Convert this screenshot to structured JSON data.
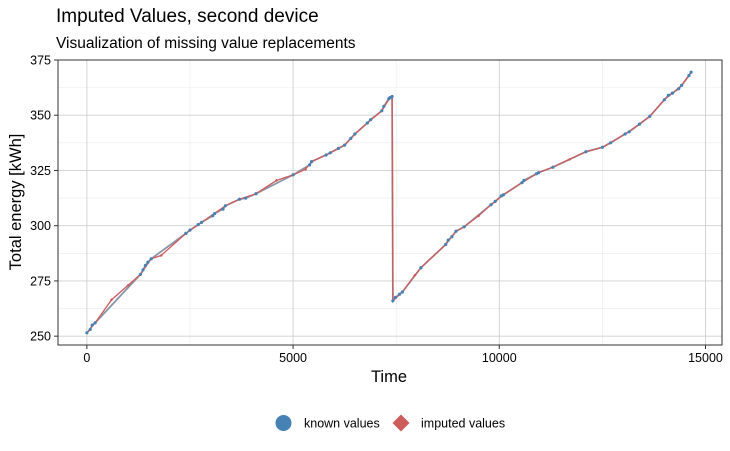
{
  "chart_data": {
    "type": "line",
    "title": "Imputed Values, second device",
    "subtitle": "Visualization of missing value replacements",
    "xlabel": "Time",
    "ylabel": "Total energy [kWh]",
    "xlim": [
      -700,
      15400
    ],
    "ylim": [
      246,
      375
    ],
    "x_ticks": [
      0,
      5000,
      10000,
      15000
    ],
    "x_tick_labels": [
      "0",
      "5000",
      "10000",
      "15000"
    ],
    "y_ticks": [
      250,
      275,
      300,
      325,
      350,
      375
    ],
    "y_tick_labels": [
      "250",
      "275",
      "300",
      "325",
      "350",
      "375"
    ],
    "grid": true,
    "legend_position": "bottom",
    "series": [
      {
        "name": "known values",
        "color": "#4682b4",
        "marker": "circle",
        "points": [
          [
            0,
            251.5
          ],
          [
            80,
            253
          ],
          [
            130,
            255
          ],
          [
            200,
            256
          ],
          [
            1300,
            278
          ],
          [
            1360,
            280
          ],
          [
            1420,
            282
          ],
          [
            1480,
            283.5
          ],
          [
            1560,
            285
          ],
          [
            2400,
            296.5
          ],
          [
            2500,
            298
          ],
          [
            2700,
            300.5
          ],
          [
            2780,
            301.5
          ],
          [
            3050,
            304.5
          ],
          [
            3100,
            305.5
          ],
          [
            3300,
            307.5
          ],
          [
            3360,
            309
          ],
          [
            3700,
            312
          ],
          [
            3850,
            312.5
          ],
          [
            4100,
            314.5
          ],
          [
            5000,
            323
          ],
          [
            5400,
            327.5
          ],
          [
            5450,
            329
          ],
          [
            5800,
            332
          ],
          [
            5900,
            333
          ],
          [
            6100,
            335
          ],
          [
            6250,
            336.5
          ],
          [
            6400,
            339.5
          ],
          [
            6500,
            341.5
          ],
          [
            6800,
            346.5
          ],
          [
            6880,
            348
          ],
          [
            7150,
            352
          ],
          [
            7200,
            354
          ],
          [
            7320,
            357.5
          ],
          [
            7350,
            358
          ],
          [
            7400,
            358.5
          ],
          [
            7420,
            266
          ],
          [
            7480,
            267.5
          ],
          [
            7580,
            269
          ],
          [
            7650,
            270
          ],
          [
            8100,
            281
          ],
          [
            8700,
            291.5
          ],
          [
            8760,
            293.5
          ],
          [
            8850,
            295
          ],
          [
            8950,
            297.5
          ],
          [
            9150,
            299.5
          ],
          [
            9800,
            309.5
          ],
          [
            9900,
            311
          ],
          [
            10050,
            313.5
          ],
          [
            10100,
            314
          ],
          [
            10550,
            319.5
          ],
          [
            10600,
            320.5
          ],
          [
            10900,
            323.5
          ],
          [
            10950,
            324
          ],
          [
            11300,
            326.5
          ],
          [
            12100,
            333.5
          ],
          [
            12500,
            335.5
          ],
          [
            12700,
            337.5
          ],
          [
            13050,
            341.5
          ],
          [
            13150,
            342.5
          ],
          [
            13400,
            346
          ],
          [
            13650,
            349.5
          ],
          [
            14000,
            357
          ],
          [
            14100,
            359
          ],
          [
            14200,
            360
          ],
          [
            14350,
            362
          ],
          [
            14420,
            363.5
          ],
          [
            14600,
            368
          ],
          [
            14650,
            369.5
          ]
        ]
      },
      {
        "name": "imputed values",
        "color": "#cd5c5c",
        "marker": "diamond",
        "points": [
          [
            0,
            251.5
          ],
          [
            200,
            256
          ],
          [
            600,
            266.5
          ],
          [
            1000,
            273
          ],
          [
            1300,
            278
          ],
          [
            1560,
            285
          ],
          [
            1800,
            286.5
          ],
          [
            2400,
            296.5
          ],
          [
            2780,
            301.5
          ],
          [
            3360,
            309
          ],
          [
            3700,
            312
          ],
          [
            4100,
            314.5
          ],
          [
            4600,
            320.5
          ],
          [
            5000,
            323
          ],
          [
            5300,
            325.5
          ],
          [
            5450,
            329
          ],
          [
            5900,
            333
          ],
          [
            6250,
            336.5
          ],
          [
            6500,
            341.5
          ],
          [
            6800,
            346.5
          ],
          [
            7150,
            352
          ],
          [
            7350,
            358
          ],
          [
            7400,
            358.5
          ],
          [
            7420,
            266
          ],
          [
            7650,
            270
          ],
          [
            7950,
            277.5
          ],
          [
            8100,
            281
          ],
          [
            8700,
            291.5
          ],
          [
            8950,
            297.5
          ],
          [
            9150,
            299.5
          ],
          [
            9500,
            304.5
          ],
          [
            9800,
            309.5
          ],
          [
            10100,
            314
          ],
          [
            10550,
            319.5
          ],
          [
            10950,
            324
          ],
          [
            11300,
            326.5
          ],
          [
            11700,
            330
          ],
          [
            12100,
            333.5
          ],
          [
            12500,
            335.5
          ],
          [
            13050,
            341.5
          ],
          [
            13400,
            346
          ],
          [
            13650,
            349.5
          ],
          [
            14000,
            357
          ],
          [
            14200,
            360
          ],
          [
            14420,
            363.5
          ],
          [
            14650,
            369.5
          ]
        ]
      }
    ]
  },
  "legend": {
    "items": [
      {
        "label": "known values",
        "color": "#4682b4",
        "marker": "circle"
      },
      {
        "label": "imputed values",
        "color": "#cd5c5c",
        "marker": "diamond"
      }
    ]
  },
  "colors": {
    "known": "#4682b4",
    "imputed": "#cd5c5c",
    "connector": "#8a96a8",
    "grid_major": "#d0d0d0",
    "grid_minor": "#ebebeb",
    "panel_border": "#333333"
  }
}
